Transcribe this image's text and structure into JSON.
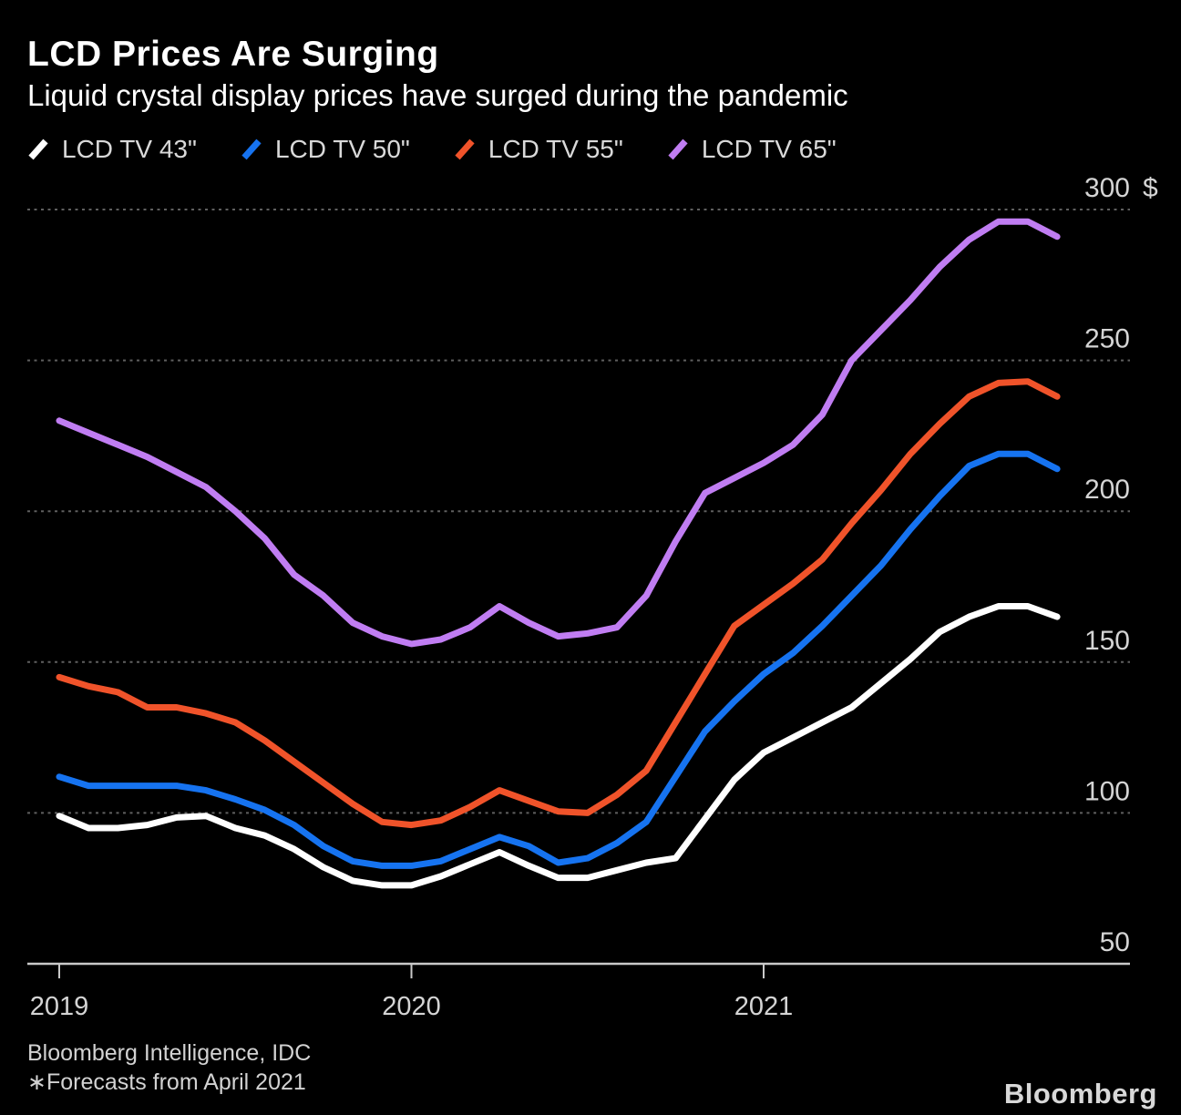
{
  "header": {
    "title": "LCD Prices Are Surging",
    "subtitle": "Liquid crystal display prices have surged during the pandemic"
  },
  "legend": {
    "items": [
      {
        "label": "LCD TV 43\"",
        "color": "#ffffff"
      },
      {
        "label": "LCD TV 50\"",
        "color": "#1673f0"
      },
      {
        "label": "LCD TV 55\"",
        "color": "#f0532a"
      },
      {
        "label": "LCD TV 65\"",
        "color": "#c07df2"
      }
    ]
  },
  "chart_data": {
    "type": "line",
    "x_note": "monthly values, Jan 2019 - Nov 2021, estimated from pixels",
    "x_tick_labels": [
      "2019",
      "2020",
      "2021"
    ],
    "x_tick_month_index": [
      0,
      12,
      24
    ],
    "y_ticks": [
      300,
      250,
      200,
      150,
      100,
      50
    ],
    "y_unit": "$",
    "ylim": [
      50,
      310
    ],
    "grid": "dashed horizontal",
    "legend_position": "top",
    "series": [
      {
        "name": "LCD TV 43\"",
        "color": "#ffffff",
        "values": [
          99,
          95,
          95,
          96,
          98.5,
          99,
          95,
          92.5,
          88,
          82,
          77.5,
          76,
          76,
          79,
          83,
          87,
          82.5,
          78.5,
          78.5,
          81,
          83.5,
          85,
          98,
          111,
          120,
          125,
          130,
          135,
          143,
          151,
          160,
          165,
          168.5,
          168.5,
          165
        ]
      },
      {
        "name": "LCD TV 50\"",
        "color": "#1673f0",
        "values": [
          112,
          109,
          109,
          109,
          109,
          107.5,
          104.5,
          101,
          96,
          89,
          84,
          82.5,
          82.5,
          84,
          88,
          92,
          89,
          83.5,
          85,
          90,
          97,
          112,
          127,
          137,
          146,
          153,
          162,
          172,
          182,
          194,
          205,
          215,
          219,
          219,
          214
        ]
      },
      {
        "name": "LCD TV 55\"",
        "color": "#f0532a",
        "values": [
          145,
          142,
          140,
          135,
          135,
          133,
          130,
          124,
          117,
          110,
          103,
          97,
          96,
          97.5,
          102,
          107.5,
          104,
          100.5,
          100,
          106,
          114,
          130,
          146,
          162,
          169,
          176,
          184,
          196,
          207,
          219,
          229,
          238,
          242.5,
          243,
          238
        ]
      },
      {
        "name": "LCD TV 65\"",
        "color": "#c07df2",
        "values": [
          230,
          226,
          222,
          218,
          213,
          208,
          200,
          191,
          179,
          172,
          163,
          158.5,
          156,
          157.5,
          161.5,
          168.5,
          163,
          158.5,
          159.5,
          161.5,
          172,
          190,
          206,
          211,
          216,
          222,
          232,
          250,
          260,
          270,
          281,
          290,
          296,
          296,
          291
        ]
      }
    ]
  },
  "colors": {
    "background": "#000000",
    "grid": "#5f5f5f",
    "axis": "#c9c9c9",
    "tick_text": "#d4d4d4"
  },
  "footer": {
    "source": "Bloomberg Intelligence, IDC",
    "note": "∗Forecasts from April 2021",
    "logo": "Bloomberg"
  }
}
